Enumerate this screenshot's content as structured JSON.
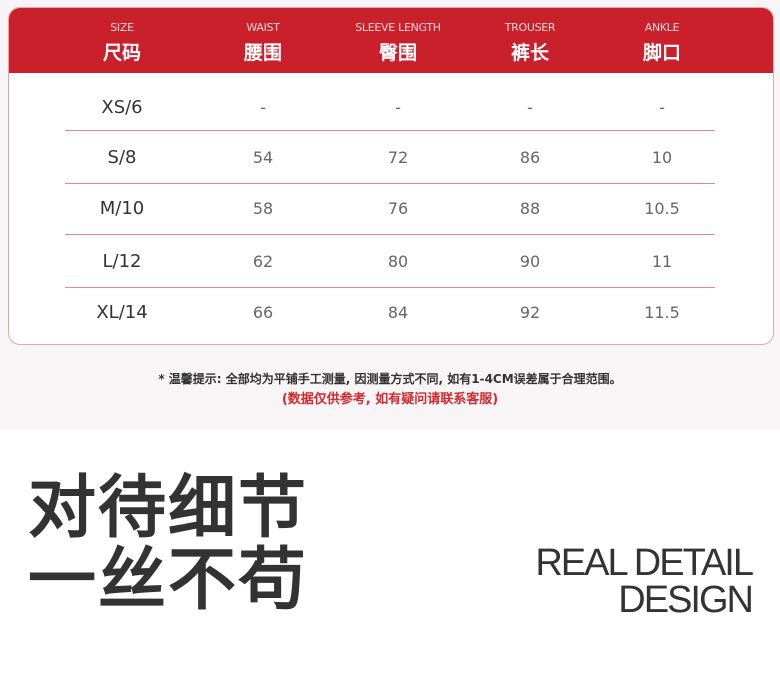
{
  "table": {
    "headers": [
      {
        "en": "SIZE",
        "cn": "尺码"
      },
      {
        "en": "WAIST",
        "cn": "腰围"
      },
      {
        "en": "SLEEVE LENGTH",
        "cn": "臀围"
      },
      {
        "en": "TROUSER",
        "cn": "裤长"
      },
      {
        "en": "ANKLE",
        "cn": "脚口"
      }
    ],
    "rows": [
      [
        "XS/6",
        "-",
        "-",
        "-",
        "-"
      ],
      [
        "S/8",
        "54",
        "72",
        "86",
        "10"
      ],
      [
        "M/10",
        "58",
        "76",
        "88",
        "10.5"
      ],
      [
        "L/12",
        "62",
        "80",
        "90",
        "11"
      ],
      [
        "XL/14",
        "66",
        "84",
        "92",
        "11.5"
      ]
    ]
  },
  "notes": {
    "tip": "* 温馨提示: 全部均为平铺手工测量, 因测量方式不同, 如有1-4CM误差属于合理范围。",
    "reference": "(数据仅供参考, 如有疑问请联系客服)"
  },
  "slogan": {
    "cn_line1": "对待细节",
    "cn_line2": "一丝不苟",
    "en_line1": "REAL DETAIL",
    "en_line2": "DESIGN"
  },
  "colors": {
    "header_red": "#c9202b",
    "note_red": "#d22a30"
  }
}
